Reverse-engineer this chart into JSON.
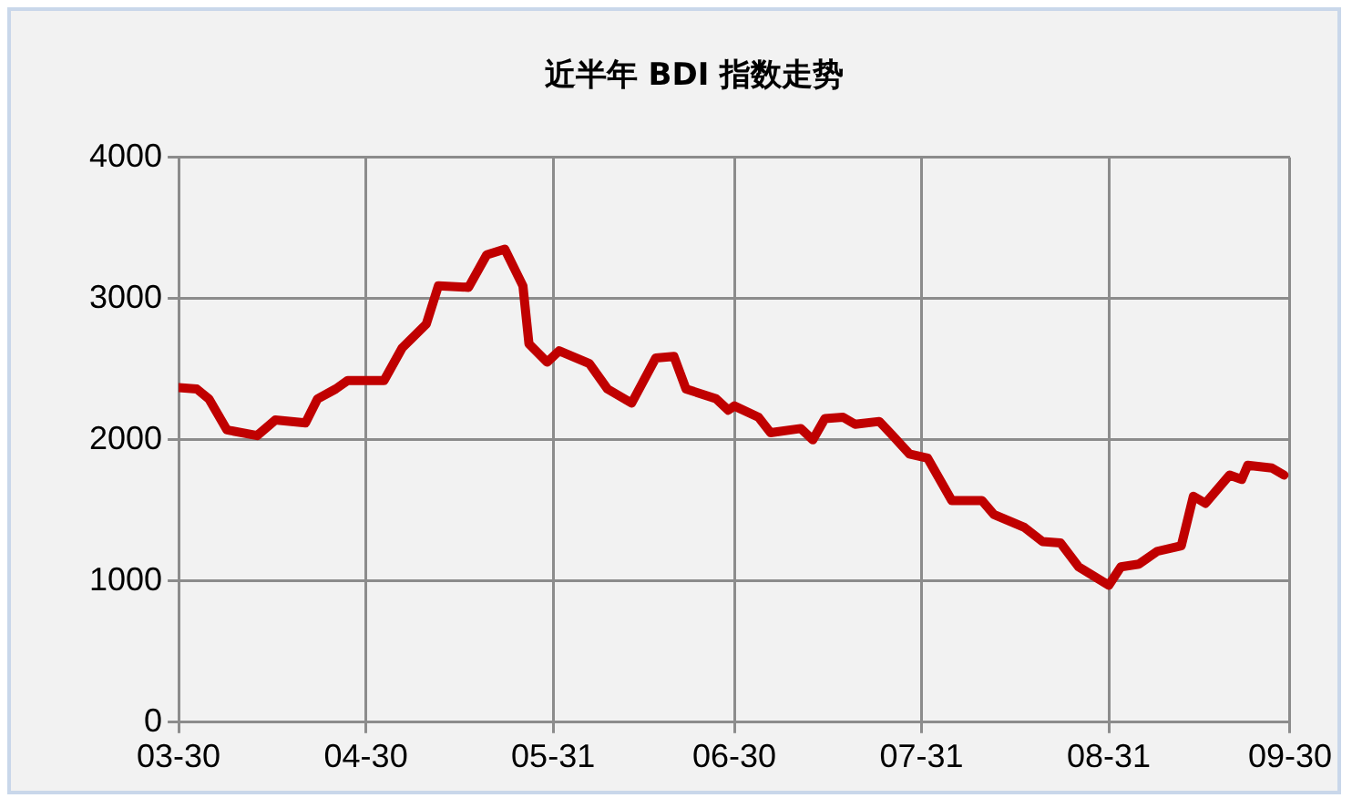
{
  "chart_data": {
    "type": "line",
    "title": "近半年 BDI 指数走势",
    "x": [
      "--03-30",
      "--04-02",
      "--04-04",
      "--04-07",
      "--04-12",
      "--04-15",
      "--04-20",
      "--04-22",
      "--04-25",
      "--04-27",
      "--05-03",
      "--05-06",
      "--05-10",
      "--05-12",
      "--05-17",
      "--05-20",
      "--05-23",
      "--05-26",
      "--05-27",
      "--05-30",
      "--06-01",
      "--06-06",
      "--06-09",
      "--06-13",
      "--06-17",
      "--06-20",
      "--06-22",
      "--06-27",
      "--06-29",
      "--06-30",
      "--07-04",
      "--07-06",
      "--07-11",
      "--07-13",
      "--07-15",
      "--07-18",
      "--07-20",
      "--07-24",
      "--07-26",
      "--07-29",
      "--08-01",
      "--08-05",
      "--08-10",
      "--08-12",
      "--08-17",
      "--08-20",
      "--08-23",
      "--08-26",
      "--08-31",
      "--09-02",
      "--09-05",
      "--09-08",
      "--09-12",
      "--09-14",
      "--09-16",
      "--09-20",
      "--09-22",
      "--09-23",
      "--09-27",
      "--09-29"
    ],
    "series": [
      {
        "color": "#c00000",
        "values": [
          2370,
          2360,
          2290,
          2070,
          2030,
          2140,
          2120,
          2290,
          2360,
          2420,
          2420,
          2650,
          2820,
          3090,
          3080,
          3310,
          3350,
          3090,
          2680,
          2550,
          2630,
          2540,
          2360,
          2260,
          2580,
          2590,
          2360,
          2290,
          2210,
          2240,
          2160,
          2050,
          2080,
          2000,
          2150,
          2160,
          2110,
          2130,
          2040,
          1900,
          1870,
          1570,
          1570,
          1470,
          1380,
          1280,
          1270,
          1100,
          970,
          1100,
          1120,
          1210,
          1250,
          1600,
          1550,
          1750,
          1720,
          1820,
          1800,
          1750
        ]
      }
    ],
    "xlim": [
      "--03-30",
      "--09-30"
    ],
    "xticks": [
      {
        "value": "--03-30",
        "label": "03-30"
      },
      {
        "value": "--04-30",
        "label": "04-30"
      },
      {
        "value": "--05-31",
        "label": "05-31"
      },
      {
        "value": "--06-30",
        "label": "06-30"
      },
      {
        "value": "--07-31",
        "label": "07-31"
      },
      {
        "value": "--08-31",
        "label": "08-31"
      },
      {
        "value": "--09-30",
        "label": "09-30"
      }
    ],
    "ylim": [
      0,
      4000
    ],
    "yticks": [
      0,
      1000,
      2000,
      3000,
      4000
    ],
    "grid": true,
    "legend": false,
    "marker": "none",
    "line_style": "solid"
  }
}
